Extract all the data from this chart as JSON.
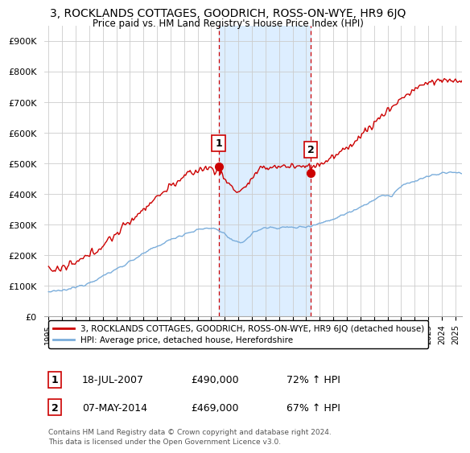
{
  "title": "3, ROCKLANDS COTTAGES, GOODRICH, ROSS-ON-WYE, HR9 6JQ",
  "subtitle": "Price paid vs. HM Land Registry's House Price Index (HPI)",
  "ylabel_ticks": [
    "£0",
    "£100K",
    "£200K",
    "£300K",
    "£400K",
    "£500K",
    "£600K",
    "£700K",
    "£800K",
    "£900K"
  ],
  "ylim": [
    0,
    950000
  ],
  "xlim_start": 1994.7,
  "xlim_end": 2025.5,
  "sale1_x": 2007.54,
  "sale1_y": 490000,
  "sale1_label": "1",
  "sale1_date": "18-JUL-2007",
  "sale1_price": "£490,000",
  "sale1_hpi": "72% ↑ HPI",
  "sale2_x": 2014.35,
  "sale2_y": 469000,
  "sale2_label": "2",
  "sale2_date": "07-MAY-2014",
  "sale2_price": "£469,000",
  "sale2_hpi": "67% ↑ HPI",
  "line_color_property": "#cc0000",
  "line_color_hpi": "#7aaddb",
  "shade_color": "#ddeeff",
  "vline_color": "#cc0000",
  "legend_property": "3, ROCKLANDS COTTAGES, GOODRICH, ROSS-ON-WYE, HR9 6JQ (detached house)",
  "legend_hpi": "HPI: Average price, detached house, Herefordshire",
  "footnote1": "Contains HM Land Registry data © Crown copyright and database right 2024.",
  "footnote2": "This data is licensed under the Open Government Licence v3.0.",
  "background_color": "#ffffff"
}
